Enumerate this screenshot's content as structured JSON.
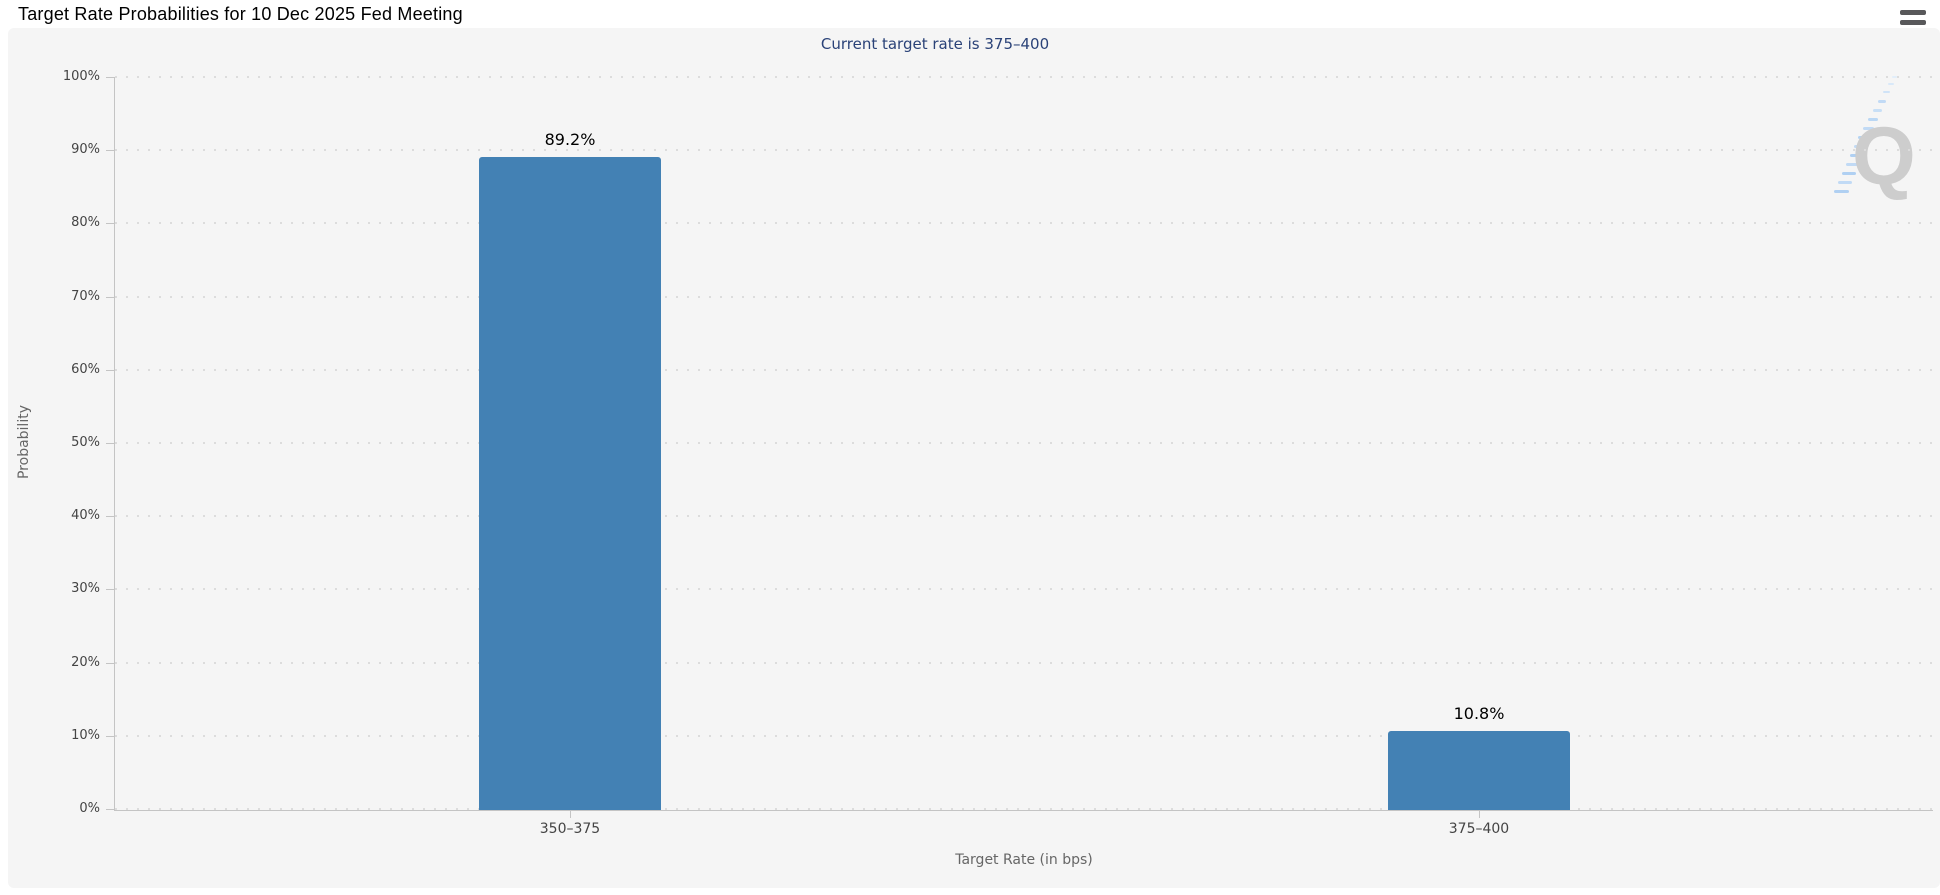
{
  "header": {
    "title": "Target Rate Probabilities for 10 Dec 2025 Fed Meeting",
    "menu_icon": "hamburger-menu"
  },
  "chart_data": {
    "type": "bar",
    "title": "Target Rate Probabilities for 10 Dec 2025 Fed Meeting",
    "subtitle": "Current target rate is 375–400",
    "categories": [
      "350–375",
      "375–400"
    ],
    "values": [
      89.2,
      10.8
    ],
    "value_labels": [
      "89.2%",
      "10.8%"
    ],
    "xlabel": "Target Rate (in bps)",
    "ylabel": "Probability",
    "ylim": [
      0,
      100
    ],
    "ytick_labels": [
      "0%",
      "10%",
      "20%",
      "30%",
      "40%",
      "50%",
      "60%",
      "70%",
      "80%",
      "90%",
      "100%"
    ],
    "grid": "horizontal-dotted",
    "legend": "none",
    "watermark_letter": "Q"
  },
  "colors": {
    "page_bg": "#ffffff",
    "chart_bg": "#f5f5f5",
    "bar": "#4381b4",
    "subtitle_text": "#2a4278",
    "axis_line": "#c4c4c4",
    "grid_dot": "#dcdcdc",
    "tick_text": "#444444",
    "axis_title_text": "#666666",
    "value_label_text": "#000000",
    "menu_icon": "#58585a",
    "watermark_gray": "#c9c9c9",
    "watermark_blue": "#a9cdf2"
  }
}
